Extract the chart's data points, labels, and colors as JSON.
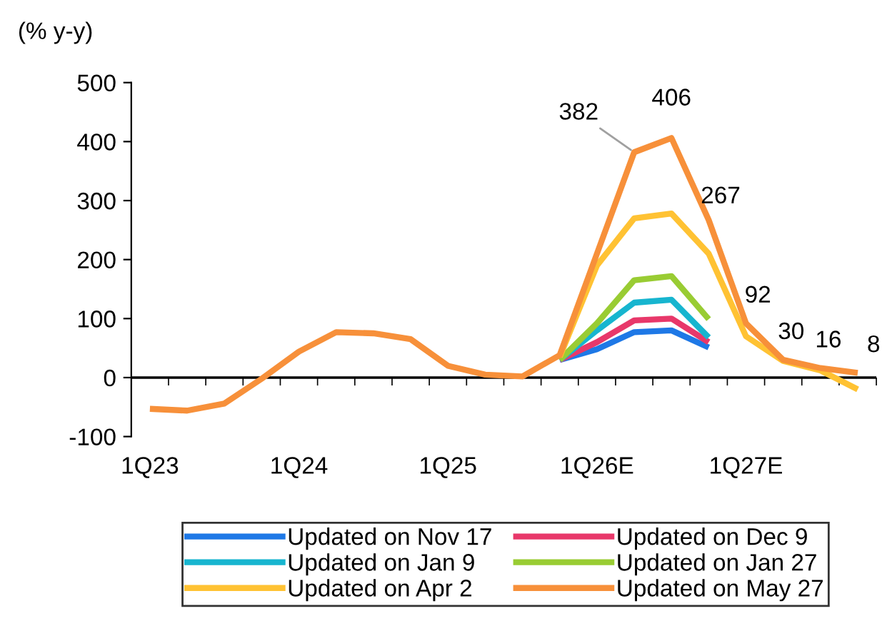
{
  "chart_data": {
    "type": "line",
    "ylabel": "(% y-y)",
    "categories": [
      "1Q23",
      null,
      null,
      null,
      "1Q24",
      null,
      null,
      null,
      "1Q25",
      null,
      null,
      null,
      "1Q26E",
      null,
      null,
      null,
      "1Q27E",
      null,
      null,
      null
    ],
    "series": [
      {
        "name": "Updated on Nov 17",
        "color": "#1e78e6",
        "values": [
          null,
          null,
          null,
          null,
          null,
          null,
          null,
          null,
          null,
          null,
          null,
          30,
          48,
          77,
          80,
          51,
          null,
          null,
          null,
          null
        ]
      },
      {
        "name": "Updated on Dec 9",
        "color": "#e8386a",
        "values": [
          null,
          null,
          null,
          null,
          null,
          null,
          null,
          null,
          null,
          null,
          null,
          30,
          60,
          97,
          100,
          60,
          null,
          null,
          null,
          null
        ]
      },
      {
        "name": "Updated on Jan 9",
        "color": "#17b5cf",
        "values": [
          null,
          null,
          null,
          null,
          null,
          null,
          null,
          null,
          null,
          null,
          null,
          30,
          80,
          127,
          132,
          68,
          null,
          null,
          null,
          null
        ]
      },
      {
        "name": "Updated on Jan 27",
        "color": "#99cc33",
        "values": [
          null,
          null,
          null,
          null,
          null,
          null,
          null,
          null,
          null,
          null,
          null,
          30,
          92,
          165,
          172,
          99,
          null,
          null,
          null,
          null
        ]
      },
      {
        "name": "Updated on Apr 2",
        "color": "#ffc233",
        "values": [
          null,
          null,
          null,
          null,
          null,
          null,
          null,
          null,
          null,
          null,
          null,
          35,
          190,
          270,
          278,
          210,
          70,
          28,
          12,
          -20
        ]
      },
      {
        "name": "Updated on May 27",
        "color": "#f7903a",
        "values": [
          -53,
          -56,
          -44,
          -2,
          44,
          77,
          75,
          65,
          20,
          5,
          2,
          38,
          210,
          382,
          406,
          267,
          92,
          30,
          16,
          8
        ],
        "value_labels": [
          null,
          null,
          null,
          null,
          null,
          null,
          null,
          null,
          null,
          null,
          null,
          null,
          null,
          "382",
          "406",
          "267",
          "92",
          "30",
          "16",
          "8"
        ]
      }
    ],
    "ylim": [
      -100,
      500
    ],
    "yticks": [
      -100,
      0,
      100,
      200,
      300,
      400,
      500
    ],
    "ref_lines": [
      {
        "axis": "y",
        "value": 0,
        "color": "#000000"
      }
    ],
    "grid": false,
    "legend": "bottom",
    "marker": "none",
    "line_style": "solid"
  }
}
